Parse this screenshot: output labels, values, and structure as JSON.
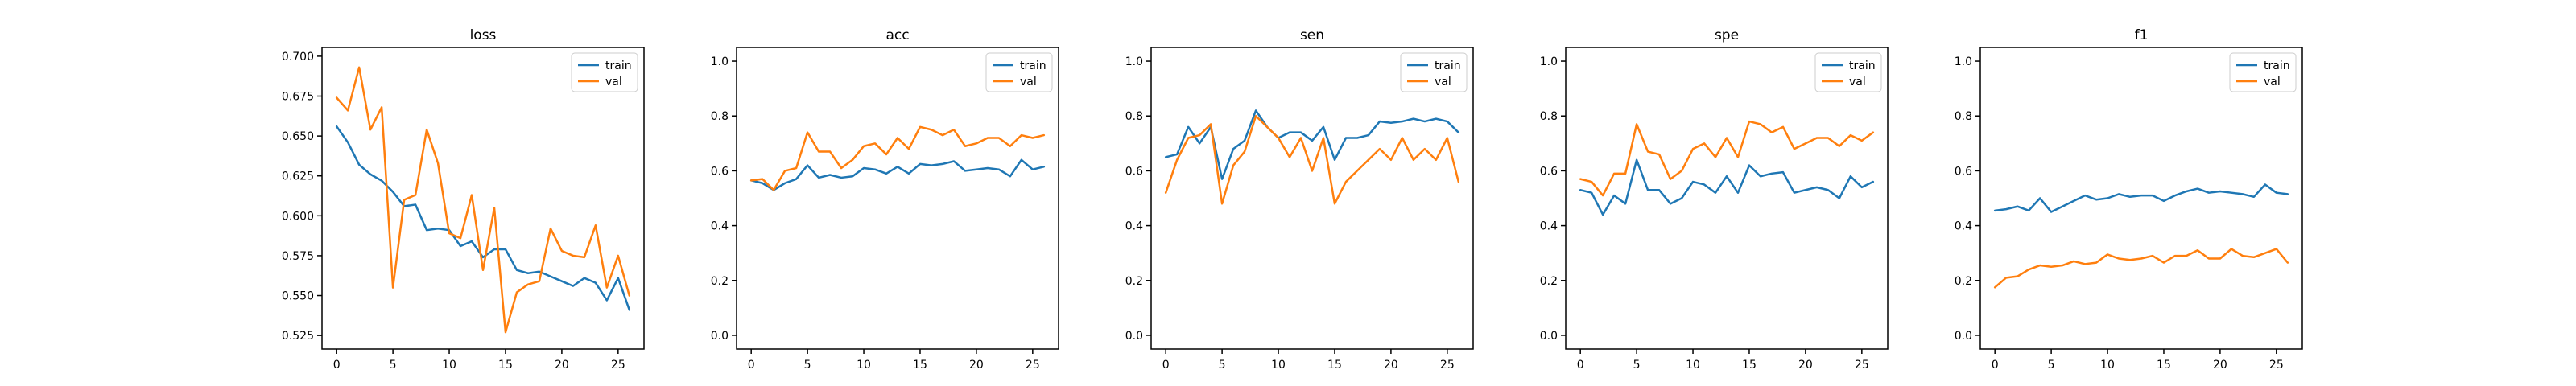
{
  "colors": {
    "train": "#1f77b4",
    "val": "#ff7f0e"
  },
  "chart_data": [
    {
      "type": "line",
      "title": "loss",
      "xlabel": "",
      "ylabel": "",
      "grid": false,
      "legend": "top-right",
      "xlim": [
        -1.3,
        27.3
      ],
      "ylim": [
        0.5165,
        0.7055
      ],
      "xticks": [
        0,
        5,
        10,
        15,
        20,
        25
      ],
      "xtick_labels": [
        "0",
        "5",
        "10",
        "15",
        "20",
        "25"
      ],
      "yticks": [
        0.525,
        0.55,
        0.575,
        0.6,
        0.625,
        0.65,
        0.675,
        0.7
      ],
      "ytick_labels": [
        "0.525",
        "0.550",
        "0.575",
        "0.600",
        "0.625",
        "0.650",
        "0.675",
        "0.700"
      ],
      "x": [
        0,
        1,
        2,
        3,
        4,
        5,
        6,
        7,
        8,
        9,
        10,
        11,
        12,
        13,
        14,
        15,
        16,
        17,
        18,
        19,
        20,
        21,
        22,
        23,
        24,
        25,
        26
      ],
      "series": [
        {
          "name": "train",
          "color": "#1f77b4",
          "values": [
            0.656,
            0.646,
            0.632,
            0.626,
            0.622,
            0.615,
            0.606,
            0.607,
            0.591,
            0.592,
            0.591,
            0.581,
            0.584,
            0.574,
            0.579,
            0.579,
            0.566,
            0.564,
            0.565,
            0.562,
            0.559,
            0.556,
            0.561,
            0.558,
            0.547,
            0.561,
            0.541
          ]
        },
        {
          "name": "val",
          "color": "#ff7f0e",
          "values": [
            0.674,
            0.666,
            0.693,
            0.654,
            0.668,
            0.555,
            0.61,
            0.613,
            0.654,
            0.633,
            0.589,
            0.586,
            0.613,
            0.566,
            0.605,
            0.527,
            0.552,
            0.557,
            0.559,
            0.592,
            0.578,
            0.575,
            0.574,
            0.594,
            0.555,
            0.575,
            0.55
          ]
        }
      ]
    },
    {
      "type": "line",
      "title": "acc",
      "xlabel": "",
      "ylabel": "",
      "grid": false,
      "legend": "top-right",
      "xlim": [
        -1.3,
        27.3
      ],
      "ylim": [
        -0.05,
        1.05
      ],
      "xticks": [
        0,
        5,
        10,
        15,
        20,
        25
      ],
      "xtick_labels": [
        "0",
        "5",
        "10",
        "15",
        "20",
        "25"
      ],
      "yticks": [
        0.0,
        0.2,
        0.4,
        0.6,
        0.8,
        1.0
      ],
      "ytick_labels": [
        "0.0",
        "0.2",
        "0.4",
        "0.6",
        "0.8",
        "1.0"
      ],
      "x": [
        0,
        1,
        2,
        3,
        4,
        5,
        6,
        7,
        8,
        9,
        10,
        11,
        12,
        13,
        14,
        15,
        16,
        17,
        18,
        19,
        20,
        21,
        22,
        23,
        24,
        25,
        26
      ],
      "series": [
        {
          "name": "train",
          "color": "#1f77b4",
          "values": [
            0.565,
            0.555,
            0.53,
            0.555,
            0.57,
            0.62,
            0.575,
            0.585,
            0.575,
            0.58,
            0.61,
            0.605,
            0.59,
            0.615,
            0.59,
            0.625,
            0.62,
            0.625,
            0.635,
            0.6,
            0.605,
            0.61,
            0.605,
            0.58,
            0.64,
            0.605,
            0.615
          ]
        },
        {
          "name": "val",
          "color": "#ff7f0e",
          "values": [
            0.565,
            0.57,
            0.53,
            0.6,
            0.61,
            0.74,
            0.67,
            0.67,
            0.61,
            0.64,
            0.69,
            0.7,
            0.66,
            0.72,
            0.68,
            0.76,
            0.75,
            0.73,
            0.75,
            0.69,
            0.7,
            0.72,
            0.72,
            0.69,
            0.73,
            0.72,
            0.73
          ]
        }
      ]
    },
    {
      "type": "line",
      "title": "sen",
      "xlabel": "",
      "ylabel": "",
      "grid": false,
      "legend": "top-right",
      "xlim": [
        -1.3,
        27.3
      ],
      "ylim": [
        -0.05,
        1.05
      ],
      "xticks": [
        0,
        5,
        10,
        15,
        20,
        25
      ],
      "xtick_labels": [
        "0",
        "5",
        "10",
        "15",
        "20",
        "25"
      ],
      "yticks": [
        0.0,
        0.2,
        0.4,
        0.6,
        0.8,
        1.0
      ],
      "ytick_labels": [
        "0.0",
        "0.2",
        "0.4",
        "0.6",
        "0.8",
        "1.0"
      ],
      "x": [
        0,
        1,
        2,
        3,
        4,
        5,
        6,
        7,
        8,
        9,
        10,
        11,
        12,
        13,
        14,
        15,
        16,
        17,
        18,
        19,
        20,
        21,
        22,
        23,
        24,
        25,
        26
      ],
      "series": [
        {
          "name": "train",
          "color": "#1f77b4",
          "values": [
            0.65,
            0.66,
            0.76,
            0.7,
            0.76,
            0.57,
            0.68,
            0.71,
            0.82,
            0.76,
            0.72,
            0.74,
            0.74,
            0.71,
            0.76,
            0.64,
            0.72,
            0.72,
            0.73,
            0.78,
            0.775,
            0.78,
            0.79,
            0.78,
            0.79,
            0.78,
            0.74
          ]
        },
        {
          "name": "val",
          "color": "#ff7f0e",
          "values": [
            0.52,
            0.64,
            0.72,
            0.73,
            0.77,
            0.48,
            0.62,
            0.67,
            0.8,
            0.76,
            0.72,
            0.65,
            0.72,
            0.6,
            0.72,
            0.48,
            0.56,
            0.6,
            0.64,
            0.68,
            0.64,
            0.72,
            0.64,
            0.68,
            0.64,
            0.72,
            0.56
          ]
        }
      ]
    },
    {
      "type": "line",
      "title": "spe",
      "xlabel": "",
      "ylabel": "",
      "grid": false,
      "legend": "top-right",
      "xlim": [
        -1.3,
        27.3
      ],
      "ylim": [
        -0.05,
        1.05
      ],
      "xticks": [
        0,
        5,
        10,
        15,
        20,
        25
      ],
      "xtick_labels": [
        "0",
        "5",
        "10",
        "15",
        "20",
        "25"
      ],
      "yticks": [
        0.0,
        0.2,
        0.4,
        0.6,
        0.8,
        1.0
      ],
      "ytick_labels": [
        "0.0",
        "0.2",
        "0.4",
        "0.6",
        "0.8",
        "1.0"
      ],
      "x": [
        0,
        1,
        2,
        3,
        4,
        5,
        6,
        7,
        8,
        9,
        10,
        11,
        12,
        13,
        14,
        15,
        16,
        17,
        18,
        19,
        20,
        21,
        22,
        23,
        24,
        25,
        26
      ],
      "series": [
        {
          "name": "train",
          "color": "#1f77b4",
          "values": [
            0.53,
            0.52,
            0.44,
            0.51,
            0.48,
            0.64,
            0.53,
            0.53,
            0.48,
            0.5,
            0.56,
            0.55,
            0.52,
            0.58,
            0.52,
            0.62,
            0.58,
            0.59,
            0.595,
            0.52,
            0.53,
            0.54,
            0.53,
            0.5,
            0.58,
            0.54,
            0.56
          ]
        },
        {
          "name": "val",
          "color": "#ff7f0e",
          "values": [
            0.57,
            0.56,
            0.51,
            0.59,
            0.59,
            0.77,
            0.67,
            0.66,
            0.57,
            0.6,
            0.68,
            0.7,
            0.65,
            0.72,
            0.65,
            0.78,
            0.77,
            0.74,
            0.76,
            0.68,
            0.7,
            0.72,
            0.72,
            0.69,
            0.73,
            0.71,
            0.74
          ]
        }
      ]
    },
    {
      "type": "line",
      "title": "f1",
      "xlabel": "",
      "ylabel": "",
      "grid": false,
      "legend": "top-right",
      "xlim": [
        -1.3,
        27.3
      ],
      "ylim": [
        -0.05,
        1.05
      ],
      "xticks": [
        0,
        5,
        10,
        15,
        20,
        25
      ],
      "xtick_labels": [
        "0",
        "5",
        "10",
        "15",
        "20",
        "25"
      ],
      "yticks": [
        0.0,
        0.2,
        0.4,
        0.6,
        0.8,
        1.0
      ],
      "ytick_labels": [
        "0.0",
        "0.2",
        "0.4",
        "0.6",
        "0.8",
        "1.0"
      ],
      "x": [
        0,
        1,
        2,
        3,
        4,
        5,
        6,
        7,
        8,
        9,
        10,
        11,
        12,
        13,
        14,
        15,
        16,
        17,
        18,
        19,
        20,
        21,
        22,
        23,
        24,
        25,
        26
      ],
      "series": [
        {
          "name": "train",
          "color": "#1f77b4",
          "values": [
            0.455,
            0.46,
            0.47,
            0.455,
            0.5,
            0.45,
            0.47,
            0.49,
            0.51,
            0.495,
            0.5,
            0.515,
            0.505,
            0.51,
            0.51,
            0.49,
            0.51,
            0.525,
            0.535,
            0.52,
            0.525,
            0.52,
            0.515,
            0.505,
            0.55,
            0.52,
            0.515
          ]
        },
        {
          "name": "val",
          "color": "#ff7f0e",
          "values": [
            0.175,
            0.21,
            0.215,
            0.24,
            0.255,
            0.25,
            0.255,
            0.27,
            0.26,
            0.265,
            0.295,
            0.28,
            0.275,
            0.28,
            0.29,
            0.265,
            0.29,
            0.29,
            0.31,
            0.28,
            0.28,
            0.315,
            0.29,
            0.285,
            0.3,
            0.315,
            0.265
          ]
        }
      ]
    }
  ]
}
